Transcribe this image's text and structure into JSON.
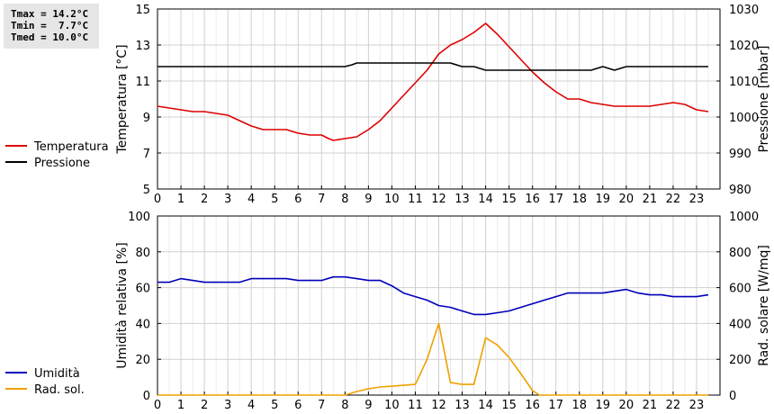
{
  "stats": {
    "tmax": "Tmax = 14.2°C",
    "tmin": "Tmin =  7.7°C",
    "tmed": "Tmed = 10.0°C"
  },
  "chart_data": [
    {
      "type": "line",
      "x_ticks": [
        "0",
        "1",
        "2",
        "3",
        "4",
        "5",
        "6",
        "7",
        "8",
        "9",
        "10",
        "11",
        "12",
        "13",
        "14",
        "15",
        "16",
        "17",
        "18",
        "19",
        "20",
        "21",
        "22",
        "23"
      ],
      "xlim": [
        0,
        24
      ],
      "ylabel": "Temperatura [°C]",
      "ylim": [
        5,
        15
      ],
      "y_ticks": [
        "5",
        "7",
        "9",
        "11",
        "13",
        "15"
      ],
      "y2label": "Pressione [mbar]",
      "y2lim": [
        980,
        1030
      ],
      "y2_ticks": [
        "980",
        "990",
        "1000",
        "1010",
        "1020",
        "1030"
      ],
      "grid": true,
      "legend_position": "left",
      "series": [
        {
          "name": "Temperatura",
          "axis": "left",
          "color": "#dd0000",
          "x": [
            0,
            0.5,
            1,
            1.5,
            2,
            2.5,
            3,
            3.5,
            4,
            4.5,
            5,
            5.5,
            6,
            6.5,
            7,
            7.3,
            7.5,
            8,
            8.5,
            9,
            9.5,
            10,
            10.5,
            11,
            11.5,
            12,
            12.5,
            13,
            13.5,
            14,
            14.5,
            15,
            15.5,
            16,
            16.5,
            17,
            17.5,
            18,
            18.5,
            19,
            19.5,
            20,
            20.5,
            21,
            21.5,
            22,
            22.5,
            23,
            23.5
          ],
          "values": [
            9.6,
            9.5,
            9.4,
            9.3,
            9.3,
            9.2,
            9.1,
            8.8,
            8.5,
            8.3,
            8.3,
            8.3,
            8.1,
            8.0,
            8.0,
            7.8,
            7.7,
            7.8,
            7.9,
            8.3,
            8.8,
            9.5,
            10.2,
            10.9,
            11.6,
            12.5,
            13.0,
            13.3,
            13.7,
            14.2,
            13.6,
            12.9,
            12.2,
            11.5,
            10.9,
            10.4,
            10.0,
            10.0,
            9.8,
            9.7,
            9.6,
            9.6,
            9.6,
            9.6,
            9.7,
            9.8,
            9.7,
            9.4,
            9.3
          ]
        },
        {
          "name": "Pressione",
          "axis": "right",
          "color": "#000000",
          "x": [
            0,
            1,
            2,
            3,
            4,
            5,
            6,
            7,
            8,
            8.3,
            8.5,
            9,
            10,
            11,
            12,
            12.5,
            13,
            13.5,
            14,
            15,
            16,
            17,
            18,
            18.5,
            19,
            19.5,
            20,
            21,
            22,
            23,
            23.5
          ],
          "values": [
            1014,
            1014,
            1014,
            1014,
            1014,
            1014,
            1014,
            1014,
            1014,
            1014.5,
            1015,
            1015,
            1015,
            1015,
            1015,
            1015,
            1014,
            1014,
            1013,
            1013,
            1013,
            1013,
            1013,
            1013,
            1014,
            1013,
            1014,
            1014,
            1014,
            1014,
            1014
          ]
        }
      ]
    },
    {
      "type": "line",
      "x_ticks": [
        "0",
        "1",
        "2",
        "3",
        "4",
        "5",
        "6",
        "7",
        "8",
        "9",
        "10",
        "11",
        "12",
        "13",
        "14",
        "15",
        "16",
        "17",
        "18",
        "19",
        "20",
        "21",
        "22",
        "23"
      ],
      "xlim": [
        0,
        24
      ],
      "ylabel": "Umidità relativa [%]",
      "ylim": [
        0,
        100
      ],
      "y_ticks": [
        "0",
        "20",
        "40",
        "60",
        "80",
        "100"
      ],
      "y2label": "Rad. solare [W/mq]",
      "y2lim": [
        0,
        1000
      ],
      "y2_ticks": [
        "0",
        "200",
        "400",
        "600",
        "800",
        "1000"
      ],
      "grid": true,
      "legend_position": "left",
      "series": [
        {
          "name": "Umidità",
          "axis": "left",
          "color": "#0000bb",
          "x": [
            0,
            0.5,
            1,
            1.5,
            2,
            2.5,
            3,
            3.5,
            4,
            4.5,
            5,
            5.5,
            6,
            6.5,
            7,
            7.5,
            8,
            8.5,
            9,
            9.5,
            10,
            10.5,
            11,
            11.5,
            12,
            12.5,
            13,
            13.5,
            14,
            14.5,
            15,
            15.5,
            16,
            16.5,
            17,
            17.5,
            18,
            18.5,
            19,
            19.5,
            20,
            20.5,
            21,
            21.5,
            22,
            22.5,
            23,
            23.5
          ],
          "values": [
            63,
            63,
            65,
            64,
            63,
            63,
            63,
            63,
            65,
            65,
            65,
            65,
            64,
            64,
            64,
            66,
            66,
            65,
            64,
            64,
            61,
            57,
            55,
            53,
            50,
            49,
            47,
            45,
            45,
            46,
            47,
            49,
            51,
            53,
            55,
            57,
            57,
            57,
            57,
            58,
            59,
            57,
            56,
            56,
            55,
            55,
            55,
            56
          ]
        },
        {
          "name": "Rad. sol.",
          "axis": "right",
          "color": "#f0a000",
          "x": [
            0,
            1,
            2,
            3,
            4,
            5,
            6,
            7,
            8,
            8.5,
            9,
            9.5,
            10,
            10.5,
            11,
            11.5,
            12,
            12.5,
            13,
            13.5,
            14,
            14.5,
            15,
            15.5,
            16,
            16.3,
            16.5,
            17,
            18,
            19,
            20,
            21,
            22,
            23,
            23.5
          ],
          "values": [
            0,
            0,
            0,
            0,
            0,
            0,
            0,
            0,
            0,
            20,
            35,
            45,
            50,
            55,
            60,
            200,
            400,
            70,
            60,
            60,
            320,
            280,
            210,
            120,
            25,
            0,
            0,
            0,
            0,
            0,
            0,
            0,
            0,
            0,
            0
          ]
        }
      ]
    }
  ]
}
